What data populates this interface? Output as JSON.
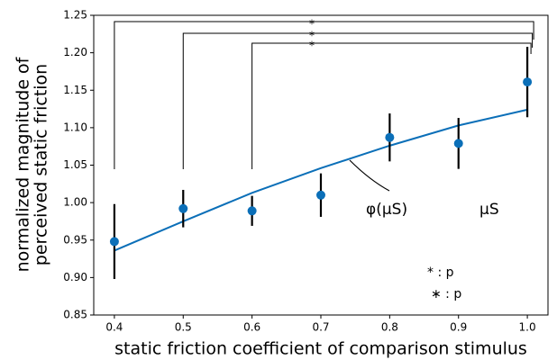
{
  "chart_data": {
    "type": "errorbar",
    "xlabel": "static friction coefficient of comparison stimulus",
    "ylabel": [
      "normalized magnitude of",
      "perceived static friction"
    ],
    "xlim": [
      0.37,
      1.03
    ],
    "ylim": [
      0.85,
      1.25
    ],
    "xticks": [
      0.4,
      0.5,
      0.6,
      0.7,
      0.8,
      0.9,
      {
        "value": 1,
        "label": "1.0"
      }
    ],
    "yticks": [
      0.85,
      {
        "value": 0.9,
        "label": "0.90"
      },
      0.95,
      {
        "value": 1,
        "label": "1.00"
      },
      1.05,
      {
        "value": 1.1,
        "label": "1.10"
      },
      1.15,
      {
        "value": 1.2,
        "label": "1.20"
      },
      1.25
    ],
    "series": [
      {
        "type": "points",
        "color": "#0b6fb8",
        "x": [
          0.4,
          0.5,
          0.6,
          0.7,
          0.8,
          0.9,
          1.0
        ],
        "values": [
          0.948,
          0.992,
          0.989,
          1.01,
          1.087,
          1.079,
          1.161
        ],
        "errors": [
          0.05,
          0.025,
          0.02,
          0.029,
          0.032,
          0.034,
          0.047
        ]
      },
      {
        "type": "line",
        "color": "#0b6fb8",
        "x": [
          0.4,
          0.5,
          0.6,
          0.7,
          0.8,
          0.9,
          1.0
        ],
        "values": [
          0.936,
          0.975,
          1.013,
          1.046,
          1.076,
          1.103,
          1.124
        ]
      }
    ],
    "brackets": [
      {
        "from": 0.4,
        "to": 1.0,
        "label": "*"
      },
      {
        "from": 0.5,
        "to": 1.0,
        "label": "*"
      },
      {
        "from": 0.6,
        "to": 1.0,
        "label": "*"
      }
    ],
    "annotations": [
      "φ(μS)",
      "μS"
    ],
    "legend": [
      "* : p",
      "∗ : p"
    ]
  }
}
